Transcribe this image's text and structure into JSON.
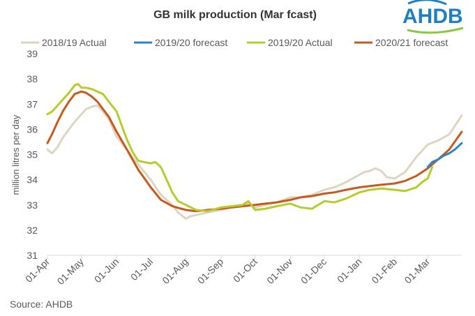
{
  "chart_data": {
    "type": "line",
    "title": "GB milk production (Mar fcast)",
    "ylabel": "million litres per day",
    "xlabel": "",
    "ylim": [
      31,
      39
    ],
    "yticks": [
      "31",
      "32",
      "33",
      "34",
      "35",
      "36",
      "37",
      "38",
      "39"
    ],
    "x_ticks": [
      "01-Apr",
      "01-May",
      "01-Jun",
      "01-Jul",
      "01-Aug",
      "01-Sep",
      "01-Oct",
      "01-Nov",
      "01-Dec",
      "01-Jan",
      "01-Feb",
      "01-Mar"
    ],
    "grid": false,
    "legend_position": "top",
    "series": [
      {
        "name": "2018/19 Actual",
        "color": "#ddd5c0",
        "x": [
          "01-Apr",
          "05-Apr",
          "10-Apr",
          "15-Apr",
          "20-Apr",
          "25-Apr",
          "01-May",
          "05-May",
          "10-May",
          "15-May",
          "20-May",
          "25-May",
          "01-Jun",
          "10-Jun",
          "20-Jun",
          "01-Jul",
          "10-Jul",
          "20-Jul",
          "25-Jul",
          "01-Aug",
          "05-Aug",
          "10-Aug",
          "20-Aug",
          "01-Sep",
          "10-Sep",
          "20-Sep",
          "25-Sep",
          "01-Oct",
          "10-Oct",
          "20-Oct",
          "01-Nov",
          "10-Nov",
          "20-Nov",
          "01-Dec",
          "10-Dec",
          "20-Dec",
          "01-Jan",
          "05-Jan",
          "10-Jan",
          "15-Jan",
          "20-Jan",
          "25-Jan",
          "01-Feb",
          "10-Feb",
          "20-Feb",
          "01-Mar",
          "10-Mar",
          "20-Mar",
          "31-Mar"
        ],
        "values": [
          35.2,
          35.05,
          35.3,
          35.7,
          36.0,
          36.3,
          36.6,
          36.8,
          36.9,
          36.95,
          36.7,
          36.4,
          35.7,
          35.2,
          34.6,
          34.0,
          33.4,
          33.0,
          32.7,
          32.45,
          32.55,
          32.6,
          32.7,
          32.8,
          32.9,
          33.0,
          33.05,
          32.9,
          33.0,
          33.1,
          33.3,
          33.3,
          33.4,
          33.6,
          33.7,
          33.9,
          34.2,
          34.3,
          34.35,
          34.45,
          34.35,
          34.1,
          34.05,
          34.3,
          34.9,
          35.4,
          35.55,
          35.8,
          36.55
        ]
      },
      {
        "name": "2019/20 forecast",
        "color": "#2e86c1",
        "x": [
          "01-Mar",
          "05-Mar",
          "10-Mar",
          "15-Mar",
          "20-Mar",
          "25-Mar",
          "31-Mar"
        ],
        "values": [
          34.5,
          34.7,
          34.8,
          34.95,
          35.05,
          35.2,
          35.45
        ]
      },
      {
        "name": "2019/20 Actual",
        "color": "#b5cc2a",
        "x": [
          "01-Apr",
          "05-Apr",
          "10-Apr",
          "15-Apr",
          "20-Apr",
          "25-Apr",
          "28-Apr",
          "01-May",
          "05-May",
          "10-May",
          "15-May",
          "20-May",
          "25-May",
          "01-Jun",
          "05-Jun",
          "10-Jun",
          "15-Jun",
          "20-Jun",
          "25-Jun",
          "01-Jul",
          "05-Jul",
          "10-Jul",
          "15-Jul",
          "20-Jul",
          "25-Jul",
          "01-Aug",
          "10-Aug",
          "20-Aug",
          "01-Sep",
          "10-Sep",
          "20-Sep",
          "25-Sep",
          "01-Oct",
          "10-Oct",
          "20-Oct",
          "01-Nov",
          "10-Nov",
          "20-Nov",
          "01-Dec",
          "10-Dec",
          "20-Dec",
          "01-Jan",
          "10-Jan",
          "20-Jan",
          "01-Feb",
          "10-Feb",
          "20-Feb",
          "25-Feb",
          "01-Mar",
          "05-Mar"
        ],
        "values": [
          36.6,
          36.7,
          36.95,
          37.2,
          37.45,
          37.75,
          37.8,
          37.65,
          37.65,
          37.6,
          37.5,
          37.4,
          37.1,
          36.7,
          36.2,
          35.6,
          35.1,
          34.75,
          34.7,
          34.65,
          34.7,
          34.5,
          34.0,
          33.5,
          33.15,
          33.0,
          32.8,
          32.75,
          32.9,
          32.95,
          33.0,
          33.15,
          32.8,
          32.85,
          32.95,
          33.05,
          32.9,
          32.85,
          33.15,
          33.1,
          33.25,
          33.5,
          33.6,
          33.65,
          33.6,
          33.55,
          33.7,
          33.9,
          34.05,
          34.5
        ]
      },
      {
        "name": "2020/21 forecast",
        "color": "#c65a1e",
        "x": [
          "01-Apr",
          "05-Apr",
          "10-Apr",
          "15-Apr",
          "20-Apr",
          "25-Apr",
          "01-May",
          "05-May",
          "10-May",
          "15-May",
          "20-May",
          "25-May",
          "01-Jun",
          "10-Jun",
          "20-Jun",
          "01-Jul",
          "10-Jul",
          "20-Jul",
          "01-Aug",
          "10-Aug",
          "20-Aug",
          "01-Sep",
          "10-Sep",
          "20-Sep",
          "01-Oct",
          "10-Oct",
          "20-Oct",
          "01-Nov",
          "10-Nov",
          "20-Nov",
          "01-Dec",
          "10-Dec",
          "20-Dec",
          "01-Jan",
          "10-Jan",
          "20-Jan",
          "01-Feb",
          "10-Feb",
          "20-Feb",
          "01-Mar",
          "10-Mar",
          "20-Mar",
          "31-Mar"
        ],
        "values": [
          35.45,
          35.8,
          36.3,
          36.75,
          37.1,
          37.4,
          37.5,
          37.45,
          37.3,
          37.1,
          36.8,
          36.5,
          35.9,
          35.2,
          34.4,
          33.7,
          33.2,
          32.95,
          32.8,
          32.75,
          32.8,
          32.85,
          32.9,
          32.95,
          33.0,
          33.05,
          33.1,
          33.2,
          33.3,
          33.35,
          33.45,
          33.5,
          33.6,
          33.7,
          33.75,
          33.8,
          33.85,
          33.95,
          34.15,
          34.45,
          34.8,
          35.2,
          35.9
        ]
      }
    ]
  },
  "source": "Source: AHDB",
  "logo": {
    "text": "AHDB",
    "color": "#1f7fc0"
  }
}
